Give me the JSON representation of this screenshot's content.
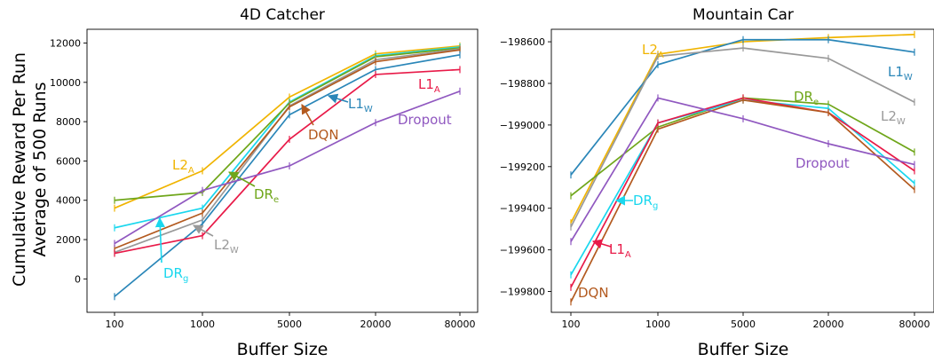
{
  "ylabel_lines": [
    "Cumulative Reward Per Run",
    "Average of 500 Runs"
  ],
  "chart_data": [
    {
      "type": "line",
      "title": "4D Catcher",
      "xlabel": "Buffer Size",
      "categories": [
        "100",
        "1000",
        "5000",
        "20000",
        "80000"
      ],
      "ylim": [
        -1700,
        12700
      ],
      "yticks": [
        0,
        2000,
        4000,
        6000,
        8000,
        10000,
        12000
      ],
      "grid": false,
      "series": [
        {
          "key": "L2A",
          "color": "#f0b400",
          "values": [
            3600,
            5500,
            9250,
            11450,
            11850
          ]
        },
        {
          "key": "DRg",
          "color": "#1ad7ee",
          "values": [
            2600,
            3600,
            9000,
            11350,
            11800
          ]
        },
        {
          "key": "DRe",
          "color": "#6fa61a",
          "values": [
            4000,
            4400,
            8950,
            11300,
            11750
          ]
        },
        {
          "key": "L2W",
          "color": "#999999",
          "values": [
            1350,
            3000,
            8800,
            11150,
            11700
          ]
        },
        {
          "key": "DQN",
          "color": "#b35a1f",
          "values": [
            1550,
            3350,
            8750,
            11050,
            11650
          ]
        },
        {
          "key": "L1W",
          "color": "#2a86b8",
          "values": [
            -900,
            2800,
            8350,
            10650,
            11400
          ]
        },
        {
          "key": "L1A",
          "color": "#e81a48",
          "values": [
            1300,
            2200,
            7100,
            10400,
            10650
          ]
        },
        {
          "key": "Dropout",
          "color": "#9058c0",
          "values": [
            1800,
            4500,
            5750,
            7950,
            9550
          ]
        }
      ],
      "annotations": [
        {
          "series": "L2A",
          "base": "L2",
          "sub": "A"
        },
        {
          "series": "DRe",
          "base": "DR",
          "sub": "e"
        },
        {
          "series": "L2W",
          "base": "L2",
          "sub": "W"
        },
        {
          "series": "DRg",
          "base": "DR",
          "sub": "g"
        },
        {
          "series": "DQN",
          "base": "DQN",
          "sub": ""
        },
        {
          "series": "L1W",
          "base": "L1",
          "sub": "W"
        },
        {
          "series": "L1A",
          "base": "L1",
          "sub": "A"
        },
        {
          "series": "Dropout",
          "base": "Dropout",
          "sub": ""
        }
      ]
    },
    {
      "type": "line",
      "title": "Mountain Car",
      "xlabel": "Buffer Size",
      "categories": [
        "100",
        "1000",
        "5000",
        "20000",
        "80000"
      ],
      "ylim": [
        -199900,
        -198540
      ],
      "yticks": [
        -199800,
        -199600,
        -199400,
        -199200,
        -199000,
        -198800,
        -198600
      ],
      "grid": false,
      "series": [
        {
          "key": "L2A",
          "color": "#f0b400",
          "values": [
            -199470,
            -198660,
            -198600,
            -198580,
            -198565
          ]
        },
        {
          "key": "L1W",
          "color": "#2a86b8",
          "values": [
            -199240,
            -198710,
            -198590,
            -198590,
            -198650
          ]
        },
        {
          "key": "L2W",
          "color": "#999999",
          "values": [
            -199490,
            -198670,
            -198630,
            -198680,
            -198890
          ]
        },
        {
          "key": "DRe",
          "color": "#6fa61a",
          "values": [
            -199340,
            -199010,
            -198870,
            -198900,
            -199130
          ]
        },
        {
          "key": "DRg",
          "color": "#1ad7ee",
          "values": [
            -199720,
            -198990,
            -198880,
            -198920,
            -199280
          ]
        },
        {
          "key": "L1A",
          "color": "#e81a48",
          "values": [
            -199780,
            -198990,
            -198870,
            -198940,
            -199220
          ]
        },
        {
          "key": "DQN",
          "color": "#b35a1f",
          "values": [
            -199850,
            -199020,
            -198880,
            -198940,
            -199310
          ]
        },
        {
          "key": "Dropout",
          "color": "#9058c0",
          "values": [
            -199560,
            -198870,
            -198970,
            -199090,
            -199190
          ]
        }
      ],
      "annotations": [
        {
          "series": "L2A",
          "base": "L2",
          "sub": "A"
        },
        {
          "series": "L1W",
          "base": "L1",
          "sub": "W"
        },
        {
          "series": "DRe",
          "base": "DR",
          "sub": "e"
        },
        {
          "series": "L2W",
          "base": "L2",
          "sub": "W"
        },
        {
          "series": "Dropout",
          "base": "Dropout",
          "sub": ""
        },
        {
          "series": "DRg",
          "base": "DR",
          "sub": "g"
        },
        {
          "series": "L1A",
          "base": "L1",
          "sub": "A"
        },
        {
          "series": "DQN",
          "base": "DQN",
          "sub": ""
        }
      ]
    }
  ]
}
